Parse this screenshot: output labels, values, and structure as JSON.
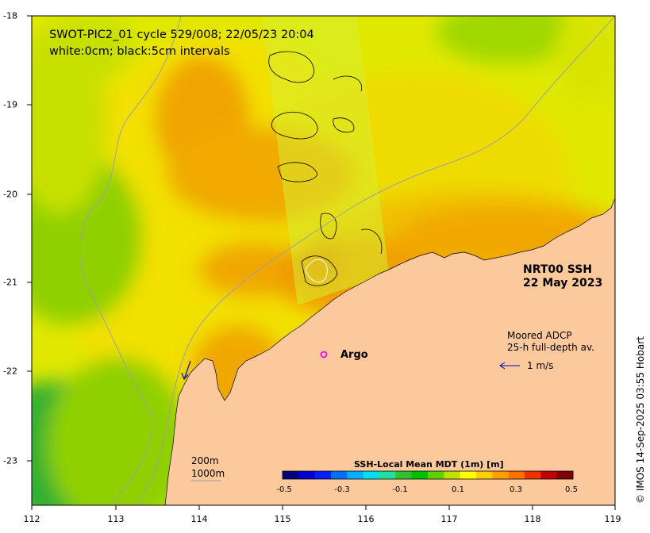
{
  "map": {
    "title_line1": "SWOT-PIC2_01 cycle 529/008; 22/05/23 20:04",
    "title_line2": "white:0cm; black:5cm intervals",
    "product": "NRT00 SSH",
    "date": "22 May 2023",
    "adcp_title": "Moored ADCP",
    "adcp_subtitle": "25-h full-depth av.",
    "velocity_scale": "1 m/s",
    "argo_label": "Argo",
    "isobath_1": "200m",
    "isobath_2": "1000m",
    "credit": "© IMOS 14-Sep-2025 03:55 Hobart",
    "colors": {
      "land": "#fcc99c",
      "argo_marker": "#e020e0",
      "arrow": "#0000cc"
    }
  },
  "axes": {
    "x_ticks": [
      "112",
      "113",
      "114",
      "115",
      "116",
      "117",
      "118",
      "119"
    ],
    "y_ticks": [
      "-18",
      "-19",
      "-20",
      "-21",
      "-22",
      "-23"
    ],
    "x_range": [
      112,
      119
    ],
    "y_range": [
      -23.5,
      -18
    ]
  },
  "colorbar": {
    "title": "SSH-Local Mean MDT (1m) [m]",
    "range": [
      -0.5,
      0.5
    ],
    "tick_labels": [
      "-0.5",
      "-0.3",
      "-0.1",
      "0.1",
      "0.3",
      "0.5"
    ],
    "colors": [
      "#00007f",
      "#0000d0",
      "#0020ff",
      "#0070ff",
      "#00b0ff",
      "#00e0f0",
      "#20e0a0",
      "#30c030",
      "#00c000",
      "#60d000",
      "#c0e000",
      "#ffff00",
      "#ffd000",
      "#ffa000",
      "#ff7000",
      "#f03000",
      "#c00000",
      "#7f0000"
    ]
  }
}
